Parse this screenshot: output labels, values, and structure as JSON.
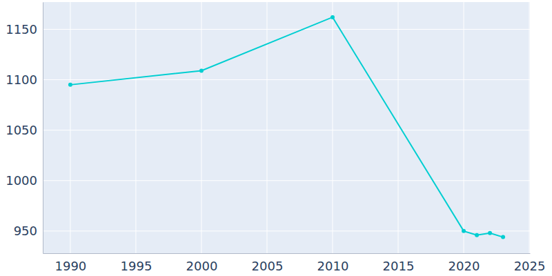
{
  "chart_data": {
    "type": "line",
    "x": [
      1990,
      2000,
      2010,
      2020,
      2021,
      2022,
      2023
    ],
    "values": [
      1095,
      1109,
      1162,
      950,
      946,
      948,
      944
    ],
    "color": "#00ced1",
    "marker": "circle",
    "xlim": [
      1987.9,
      2025.05
    ],
    "ylim": [
      928,
      1177
    ],
    "xticks": [
      1990,
      1995,
      2000,
      2005,
      2010,
      2015,
      2020,
      2025
    ],
    "yticks": [
      950,
      1000,
      1050,
      1100,
      1150
    ],
    "grid": true
  }
}
